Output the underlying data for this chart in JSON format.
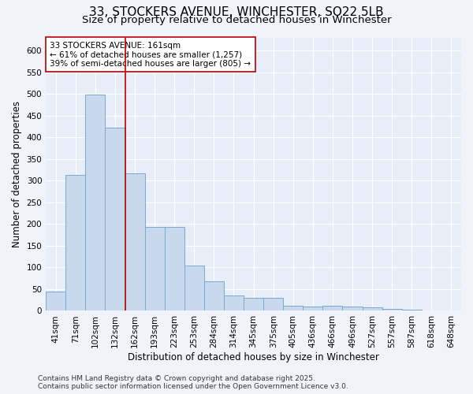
{
  "title_line1": "33, STOCKERS AVENUE, WINCHESTER, SO22 5LB",
  "title_line2": "Size of property relative to detached houses in Winchester",
  "xlabel": "Distribution of detached houses by size in Winchester",
  "ylabel": "Number of detached properties",
  "categories": [
    "41sqm",
    "71sqm",
    "102sqm",
    "132sqm",
    "162sqm",
    "193sqm",
    "223sqm",
    "253sqm",
    "284sqm",
    "314sqm",
    "345sqm",
    "375sqm",
    "405sqm",
    "436sqm",
    "466sqm",
    "496sqm",
    "527sqm",
    "557sqm",
    "587sqm",
    "618sqm",
    "648sqm"
  ],
  "values": [
    45,
    313,
    498,
    422,
    317,
    193,
    193,
    105,
    68,
    36,
    29,
    29,
    12,
    10,
    12,
    10,
    8,
    5,
    2,
    1,
    1
  ],
  "bar_color": "#c8d8ed",
  "bar_edge_color": "#7aaace",
  "vline_pos": 3.5,
  "vline_color": "#bb0000",
  "annotation_text": "33 STOCKERS AVENUE: 161sqm\n← 61% of detached houses are smaller (1,257)\n39% of semi-detached houses are larger (805) →",
  "annotation_box_color": "#ffffff",
  "annotation_box_edge_color": "#bb0000",
  "ylim": [
    0,
    630
  ],
  "yticks": [
    0,
    50,
    100,
    150,
    200,
    250,
    300,
    350,
    400,
    450,
    500,
    550,
    600
  ],
  "footer_line1": "Contains HM Land Registry data © Crown copyright and database right 2025.",
  "footer_line2": "Contains public sector information licensed under the Open Government Licence v3.0.",
  "bg_color": "#f0f4fa",
  "plot_bg_color": "#e8eef8",
  "grid_color": "#ffffff",
  "title_fontsize": 11,
  "subtitle_fontsize": 9.5,
  "axis_label_fontsize": 8.5,
  "tick_fontsize": 7.5,
  "annotation_fontsize": 7.5,
  "footer_fontsize": 6.5
}
